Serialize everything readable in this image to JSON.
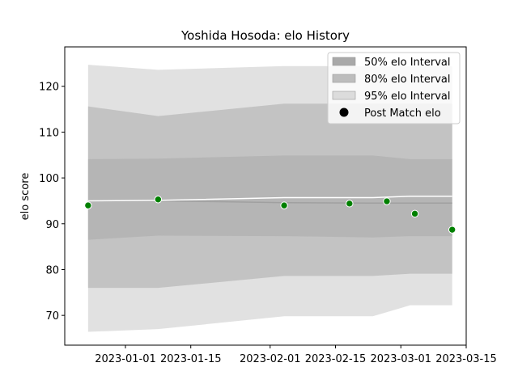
{
  "chart_data": {
    "type": "line",
    "title": "Yoshida Hosoda: elo History",
    "ylabel": "elo score",
    "xlabel": "",
    "xlim": [
      "2022-12-19",
      "2023-03-15"
    ],
    "ylim": [
      63.5,
      128.6
    ],
    "x_ticks": [
      "2023-01-01",
      "2023-01-15",
      "2023-02-01",
      "2023-02-15",
      "2023-03-01",
      "2023-03-15"
    ],
    "y_ticks": [
      70,
      80,
      90,
      100,
      110,
      120
    ],
    "grid": false,
    "legend_position": "top-right",
    "colors": {
      "band_50": "#a9a9a9",
      "band_80": "#bdbdbd",
      "band_95": "#dcdcdc",
      "mean_line": "#a0a0a0",
      "point_fill": "#008000",
      "point_edge": "#ffffff"
    },
    "legend": [
      {
        "key": "band_50",
        "label": "50% elo Interval",
        "marker": "box"
      },
      {
        "key": "band_80",
        "label": "80% elo Interval",
        "marker": "box"
      },
      {
        "key": "band_95",
        "label": "95% elo Interval",
        "marker": "box"
      },
      {
        "key": "points",
        "label": "Post Match elo",
        "marker": "dot"
      }
    ],
    "band_x": [
      "2022-12-24",
      "2023-01-08",
      "2023-02-04",
      "2023-02-23",
      "2023-03-03",
      "2023-03-12"
    ],
    "band_mean": [
      95.0,
      95.0,
      94.6,
      94.5,
      94.5,
      94.5
    ],
    "band_50": {
      "lower": [
        86.5,
        87.4,
        87.3,
        87.0,
        87.3,
        87.3
      ],
      "upper": [
        104.1,
        104.2,
        104.9,
        104.9,
        104.1,
        104.1
      ]
    },
    "band_80": {
      "lower": [
        76.0,
        76.0,
        78.6,
        78.6,
        79.1,
        79.1
      ],
      "upper": [
        115.6,
        113.5,
        116.2,
        116.2,
        116.2,
        116.2
      ]
    },
    "band_95": {
      "lower": [
        66.4,
        67.0,
        69.8,
        69.8,
        72.2,
        72.2
      ],
      "upper": [
        124.7,
        123.6,
        124.4,
        124.4,
        124.4,
        124.4
      ]
    },
    "white_line": {
      "x": [
        "2022-12-24",
        "2023-01-08",
        "2023-02-04",
        "2023-02-23",
        "2023-03-03",
        "2023-03-12"
      ],
      "y": [
        95.0,
        95.1,
        95.7,
        95.7,
        96.0,
        96.0
      ]
    },
    "points": {
      "name": "Post Match elo",
      "x": [
        "2022-12-24",
        "2023-01-08",
        "2023-02-04",
        "2023-02-18",
        "2023-02-26",
        "2023-03-04",
        "2023-03-12"
      ],
      "y": [
        94.0,
        95.3,
        94.0,
        94.4,
        94.9,
        92.2,
        88.7
      ]
    }
  }
}
